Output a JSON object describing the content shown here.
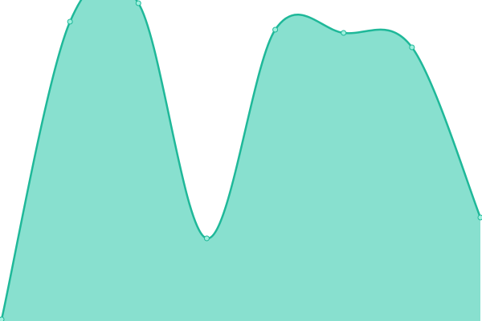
{
  "chart_data": {
    "type": "area",
    "x": [
      0,
      1,
      2,
      3,
      4,
      5,
      6,
      7
    ],
    "values": [
      2,
      373,
      396,
      103,
      363,
      359,
      341,
      129
    ],
    "xlim": [
      0,
      7
    ],
    "ylim": [
      0,
      400
    ],
    "color": "#1fb899",
    "fill_color": "#88e0cf",
    "marker_fill": "#9ff0de"
  }
}
